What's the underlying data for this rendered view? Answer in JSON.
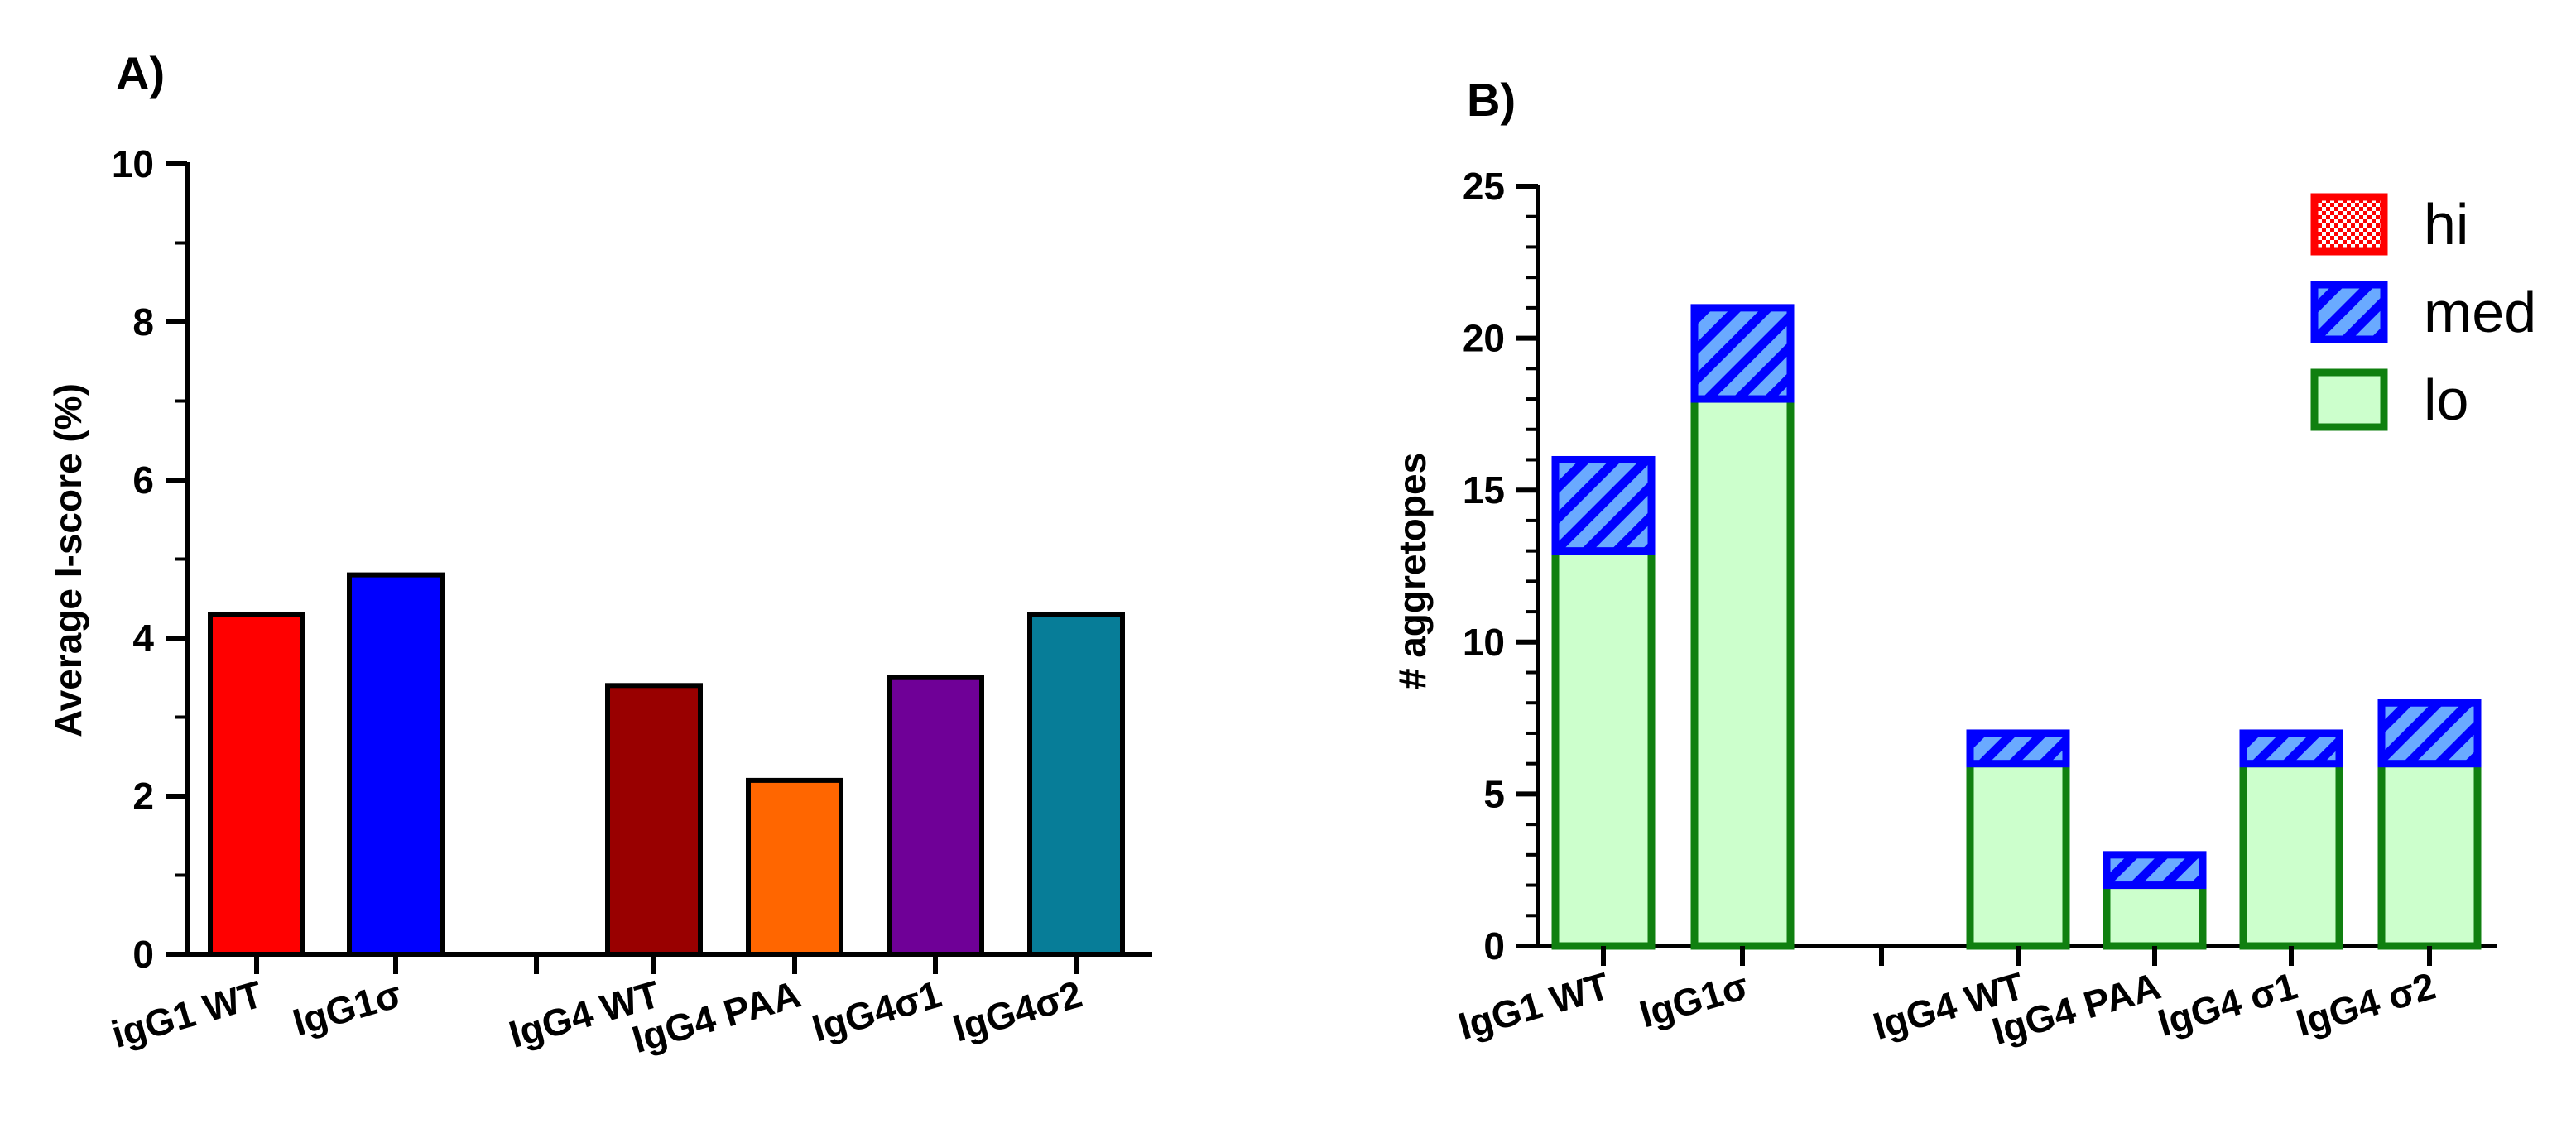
{
  "chart_data": [
    {
      "panel_label": "A)",
      "type": "bar",
      "ylabel": "Average I-score (%)",
      "xlabel": "",
      "ylim": [
        0,
        10
      ],
      "y_major_ticks": [
        0,
        2,
        4,
        6,
        8,
        10
      ],
      "y_minor_step": 1,
      "categories": [
        "igG1 WT",
        "IgG1σ",
        "",
        "IgG4 WT",
        "IgG4 PAA",
        "IgG4σ1",
        "IgG4σ2"
      ],
      "values": [
        4.3,
        4.8,
        null,
        3.4,
        2.2,
        3.5,
        4.3
      ],
      "colors": [
        "#ff0000",
        "#0000ff",
        null,
        "#990000",
        "#ff6600",
        "#6f0097",
        "#077d98"
      ]
    },
    {
      "panel_label": "B)",
      "type": "bar",
      "stacked": true,
      "ylabel": "# aggretopes",
      "xlabel": "",
      "ylim": [
        0,
        25
      ],
      "y_major_ticks": [
        0,
        5,
        10,
        15,
        20,
        25
      ],
      "y_minor_step": 1,
      "categories": [
        "IgG1 WT",
        "IgG1σ",
        "",
        "IgG4 WT",
        "IgG4 PAA",
        "IgG4 σ1",
        "IgG4 σ2"
      ],
      "series": [
        {
          "name": "lo",
          "values": [
            13,
            18,
            null,
            6,
            2,
            6,
            6
          ],
          "fill": "#ccffcc",
          "stroke": "#108010"
        },
        {
          "name": "med",
          "values": [
            3,
            3,
            null,
            1,
            1,
            1,
            2
          ],
          "fill": "#6aaaff",
          "stroke": "#0000ff",
          "pattern": "hatch"
        },
        {
          "name": "hi",
          "values": [
            0,
            0,
            null,
            0,
            0,
            0,
            0
          ],
          "fill": "#ff3030",
          "stroke": "#ff0000",
          "pattern": "checker"
        }
      ],
      "legend": {
        "position": "top-right",
        "entries": [
          "hi",
          "med",
          "lo"
        ]
      }
    }
  ]
}
